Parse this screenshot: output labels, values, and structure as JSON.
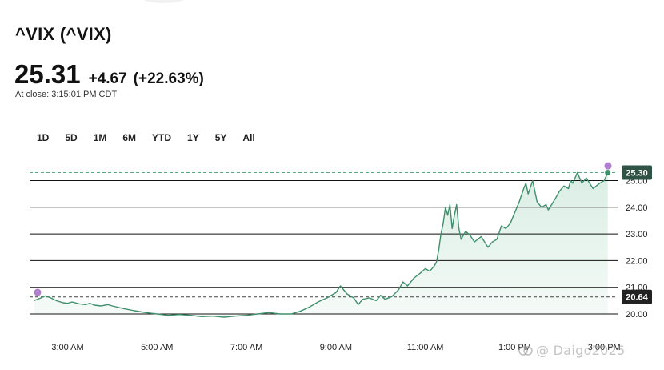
{
  "header": {
    "title": "^VIX (^VIX)",
    "price": "25.31",
    "change": "+4.67",
    "change_pct": "(+22.63%)",
    "close_time": "At close: 3:15:01 PM CDT"
  },
  "range_tabs": [
    "1D",
    "5D",
    "1M",
    "6M",
    "YTD",
    "1Y",
    "5Y",
    "All"
  ],
  "watermark": "@ Daigo2025",
  "colors": {
    "line": "#3f8f6b",
    "fill": "#d8ede3",
    "grid": "#111111",
    "dashed": "#5aa582",
    "marker": "#b07fd0",
    "label_bg": "#2f5446",
    "prev_label_bg": "#222222"
  },
  "chart_data": {
    "type": "area",
    "x_ticks": [
      "3:00 AM",
      "5:00 AM",
      "7:00 AM",
      "9:00 AM",
      "11:00 AM",
      "1:00 PM",
      "3:00 PM"
    ],
    "y_ticks": [
      "20.00",
      "21.00",
      "22.00",
      "23.00",
      "24.00",
      "25.00"
    ],
    "ylim": [
      20,
      25.5
    ],
    "xlim": [
      2.15,
      15.3
    ],
    "current_label": "25.30",
    "prev_close_label": "20.64",
    "current_value": 25.3,
    "prev_close": 20.64,
    "grid": "horizontal",
    "series": [
      {
        "x": [
          2.25,
          2.4,
          2.5,
          2.6,
          2.75,
          2.9,
          3.0,
          3.1,
          3.25,
          3.4,
          3.5,
          3.6,
          3.75,
          3.9,
          4.0,
          4.25,
          4.5,
          4.75,
          5.0,
          5.25,
          5.5,
          5.75,
          6.0,
          6.25,
          6.5,
          6.75,
          7.0,
          7.25,
          7.5,
          7.75,
          8.0,
          8.2,
          8.4,
          8.6,
          8.8,
          9.0,
          9.1,
          9.25,
          9.4,
          9.5,
          9.6,
          9.75,
          9.9,
          10.0,
          10.1,
          10.25,
          10.4,
          10.5,
          10.6,
          10.75,
          10.9,
          11.0,
          11.1,
          11.2,
          11.25,
          11.3,
          11.35,
          11.4,
          11.45,
          11.5,
          11.55,
          11.6,
          11.65,
          11.7,
          11.75,
          11.8,
          11.9,
          12.0,
          12.1,
          12.25,
          12.4,
          12.5,
          12.6,
          12.7,
          12.8,
          12.9,
          13.0,
          13.1,
          13.2,
          13.25,
          13.3,
          13.4,
          13.5,
          13.6,
          13.7,
          13.75,
          13.9,
          14.0,
          14.1,
          14.2,
          14.25,
          14.3,
          14.4,
          14.5,
          14.6,
          14.75,
          14.9,
          15.0,
          15.08
        ],
        "y": [
          20.5,
          20.6,
          20.68,
          20.62,
          20.5,
          20.42,
          20.4,
          20.45,
          20.38,
          20.35,
          20.4,
          20.33,
          20.3,
          20.35,
          20.3,
          20.2,
          20.12,
          20.05,
          20.0,
          19.95,
          19.98,
          19.95,
          19.9,
          19.92,
          19.88,
          19.92,
          19.95,
          20.0,
          20.05,
          20.0,
          20.0,
          20.1,
          20.25,
          20.45,
          20.6,
          20.8,
          21.05,
          20.75,
          20.6,
          20.35,
          20.55,
          20.6,
          20.5,
          20.7,
          20.55,
          20.65,
          20.9,
          21.2,
          21.05,
          21.35,
          21.55,
          21.7,
          21.6,
          21.8,
          21.95,
          22.4,
          23.0,
          23.4,
          24.0,
          23.7,
          24.1,
          23.2,
          23.7,
          24.1,
          23.2,
          22.8,
          23.1,
          22.95,
          22.7,
          22.9,
          22.5,
          22.7,
          22.8,
          23.3,
          23.2,
          23.4,
          23.8,
          24.2,
          24.7,
          24.9,
          24.5,
          25.0,
          24.2,
          24.0,
          24.1,
          23.9,
          24.3,
          24.6,
          24.8,
          24.7,
          25.0,
          24.9,
          25.3,
          24.9,
          25.1,
          24.7,
          24.9,
          25.0,
          25.3
        ]
      }
    ]
  }
}
